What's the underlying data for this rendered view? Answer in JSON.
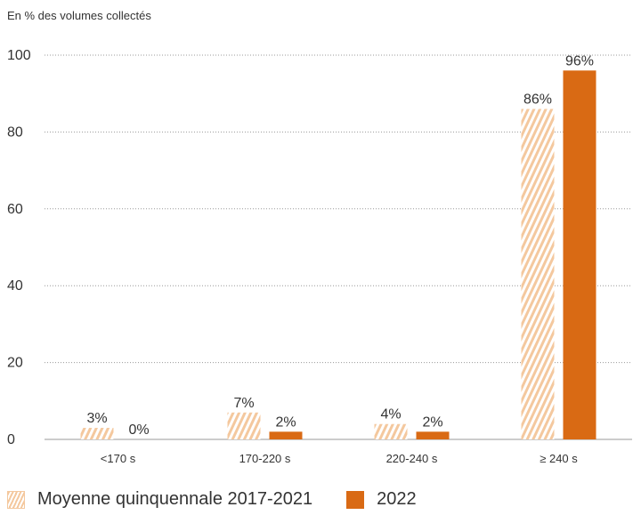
{
  "chart_data": {
    "type": "bar",
    "ylabel": "En % des volumes collectés",
    "categories": [
      "<170 s",
      "170-220 s",
      "220-240 s",
      "≥ 240 s"
    ],
    "ylim": [
      0,
      100
    ],
    "yticks": [
      0,
      20,
      40,
      60,
      80,
      100
    ],
    "grid": true,
    "legend_position": "bottom-left",
    "series": [
      {
        "name": "Moyenne quinquennale 2017-2021",
        "values": [
          3,
          7,
          4,
          86
        ],
        "labels": [
          "3%",
          "7%",
          "4%",
          "86%"
        ],
        "color": "#f4c89e",
        "pattern": "hatched"
      },
      {
        "name": "2022",
        "values": [
          0,
          2,
          2,
          96
        ],
        "labels": [
          "0%",
          "2%",
          "2%",
          "96%"
        ],
        "color": "#d96a14",
        "pattern": "solid"
      }
    ]
  }
}
